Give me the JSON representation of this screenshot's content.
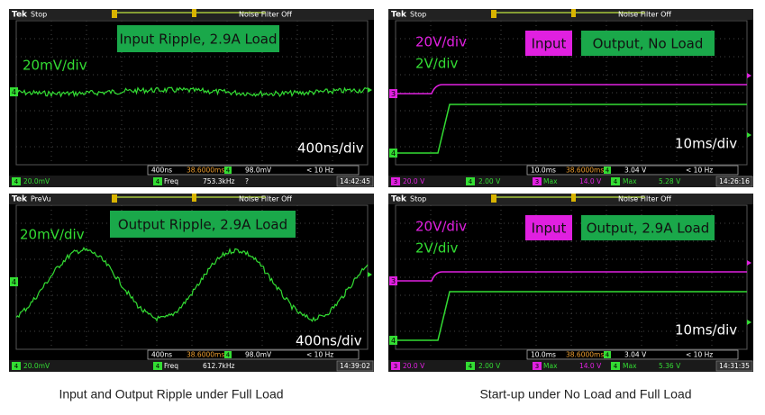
{
  "panels": [
    {
      "brand": "Tek",
      "status": "Stop",
      "filter": "Noise Filter Off",
      "labels": [
        "Input Ripple, 2.9A Load",
        "20mV/div",
        "400ns/div"
      ],
      "markers": [
        "4"
      ],
      "row1": [
        "400ns",
        "38.6000ms",
        "4",
        "98.0mV",
        "< 10 Hz"
      ],
      "row2": [
        "4",
        "20.0mV",
        "4",
        "Freq",
        "753.3kHz",
        "?"
      ],
      "time": "14:42:45"
    },
    {
      "brand": "Tek",
      "status": "PreVu",
      "filter": "Noise Filter Off",
      "labels": [
        "Output Ripple, 2.9A Load",
        "20mV/div",
        "400ns/div"
      ],
      "markers": [
        "4"
      ],
      "row1": [
        "400ns",
        "38.6000ms",
        "4",
        "98.0mV",
        "< 10 Hz"
      ],
      "row2": [
        "4",
        "20.0mV",
        "4",
        "Freq",
        "612.7kHz"
      ],
      "time": "14:39:02"
    },
    {
      "brand": "Tek",
      "status": "Stop",
      "filter": "Noise Filter Off",
      "labels": [
        "20V/div",
        "2V/div",
        "Input",
        "Output, No Load",
        "10ms/div"
      ],
      "markers": [
        "3",
        "4"
      ],
      "row1": [
        "10.0ms",
        "38.6000ms",
        "4",
        "3.04 V",
        "< 10 Hz"
      ],
      "row2": [
        "3",
        "20.0 V",
        "4",
        "2.00 V",
        "3",
        "Max",
        "14.0 V",
        "4",
        "Max",
        "5.28 V"
      ],
      "time": "14:26:16"
    },
    {
      "brand": "Tek",
      "status": "Stop",
      "filter": "Noise Filter Off",
      "labels": [
        "20V/div",
        "2V/div",
        "Input",
        "Output, 2.9A Load",
        "10ms/div"
      ],
      "markers": [
        "3",
        "4"
      ],
      "row1": [
        "10.0ms",
        "38.6000ms",
        "4",
        "3.04 V",
        "< 10 Hz"
      ],
      "row2": [
        "3",
        "20.0 V",
        "4",
        "2.00 V",
        "3",
        "Max",
        "14.0 V",
        "4",
        "Max",
        "5.36 V"
      ],
      "time": "14:31:35"
    }
  ],
  "captions": [
    "Input and Output Ripple under Full Load",
    "Start-up under No Load and Full Load"
  ]
}
